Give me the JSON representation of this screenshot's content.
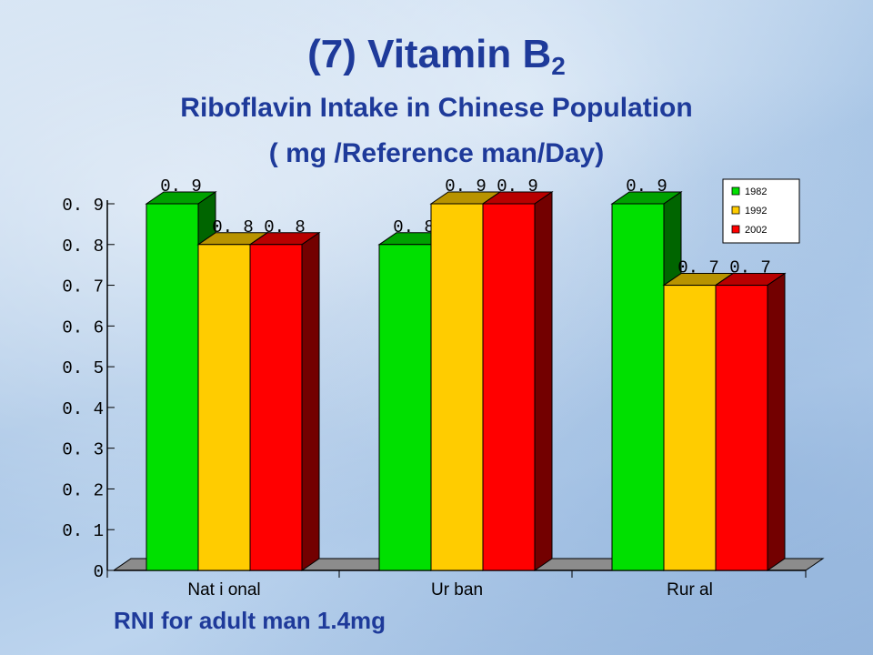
{
  "slide": {
    "title_main": "(7) Vitamin B",
    "title_sub": "2",
    "subtitle_1": "Riboflavin  Intake in Chinese Population",
    "subtitle_2": "( mg  /Reference man/Day)",
    "note": "RNI for adult man 1.4mg"
  },
  "chart_data": {
    "type": "bar",
    "categories": [
      "Nat i onal",
      "Ur ban",
      "Rur al"
    ],
    "series": [
      {
        "name": "1982",
        "color": "#00e000",
        "values": [
          0.9,
          0.8,
          0.9
        ],
        "labels": [
          "0. 9",
          "0. 8",
          "0. 9"
        ]
      },
      {
        "name": "1992",
        "color": "#ffcc00",
        "values": [
          0.8,
          0.9,
          0.7
        ],
        "labels": [
          "0. 8",
          "0. 9",
          "0. 7"
        ]
      },
      {
        "name": "2002",
        "color": "#ff0000",
        "values": [
          0.8,
          0.9,
          0.7
        ],
        "labels": [
          "0. 8",
          "0. 9",
          "0. 7"
        ]
      }
    ],
    "y_ticks": [
      {
        "value": 0,
        "label": "0"
      },
      {
        "value": 0.1,
        "label": "0. 1"
      },
      {
        "value": 0.2,
        "label": "0. 2"
      },
      {
        "value": 0.3,
        "label": "0. 3"
      },
      {
        "value": 0.4,
        "label": "0. 4"
      },
      {
        "value": 0.5,
        "label": "0. 5"
      },
      {
        "value": 0.6,
        "label": "0. 6"
      },
      {
        "value": 0.7,
        "label": "0. 7"
      },
      {
        "value": 0.8,
        "label": "0. 8"
      },
      {
        "value": 0.9,
        "label": "0. 9"
      }
    ],
    "ylim": [
      0,
      0.9
    ],
    "legend_position": "top-right",
    "grid": false,
    "style": "3d"
  }
}
